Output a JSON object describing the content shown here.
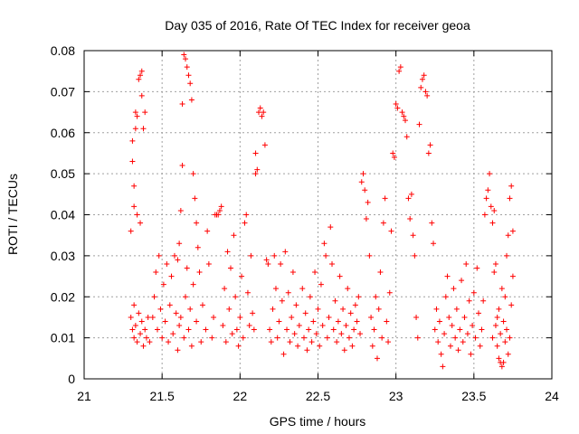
{
  "chart_data": {
    "type": "scatter",
    "title": "Day 035 of 2016, Rate Of TEC Index for receiver geoa",
    "xlabel": "GPS time / hours",
    "ylabel": "ROTI / TECUs",
    "xlim": [
      21,
      24
    ],
    "ylim": [
      0,
      0.08
    ],
    "x_ticks": [
      21,
      21.5,
      22,
      22.5,
      23,
      23.5,
      24
    ],
    "x_tick_labels": [
      "21",
      "21.5",
      "22",
      "22.5",
      "23",
      "23.5",
      "24"
    ],
    "y_ticks": [
      0,
      0.01,
      0.02,
      0.03,
      0.04,
      0.05,
      0.06,
      0.07,
      0.08
    ],
    "y_tick_labels": [
      "0",
      "0.01",
      "0.02",
      "0.03",
      "0.04",
      "0.05",
      "0.06",
      "0.07",
      "0.08"
    ],
    "grid": true,
    "marker": "+",
    "color": "#ff0000",
    "series": [
      {
        "name": "geoa",
        "points": [
          [
            21.3,
            0.015
          ],
          [
            21.31,
            0.012
          ],
          [
            21.32,
            0.01
          ],
          [
            21.32,
            0.018
          ],
          [
            21.33,
            0.013
          ],
          [
            21.34,
            0.009
          ],
          [
            21.35,
            0.016
          ],
          [
            21.36,
            0.011
          ],
          [
            21.37,
            0.014
          ],
          [
            21.38,
            0.008
          ],
          [
            21.39,
            0.012
          ],
          [
            21.4,
            0.01
          ],
          [
            21.41,
            0.015
          ],
          [
            21.42,
            0.009
          ],
          [
            21.31,
            0.058
          ],
          [
            21.31,
            0.053
          ],
          [
            21.32,
            0.047
          ],
          [
            21.32,
            0.042
          ],
          [
            21.33,
            0.065
          ],
          [
            21.34,
            0.064
          ],
          [
            21.33,
            0.061
          ],
          [
            21.35,
            0.073
          ],
          [
            21.36,
            0.074
          ],
          [
            21.37,
            0.075
          ],
          [
            21.37,
            0.069
          ],
          [
            21.38,
            0.061
          ],
          [
            21.39,
            0.065
          ],
          [
            21.34,
            0.04
          ],
          [
            21.36,
            0.038
          ],
          [
            21.3,
            0.036
          ],
          [
            21.44,
            0.015
          ],
          [
            21.45,
            0.02
          ],
          [
            21.46,
            0.026
          ],
          [
            21.47,
            0.012
          ],
          [
            21.48,
            0.03
          ],
          [
            21.49,
            0.017
          ],
          [
            21.5,
            0.01
          ],
          [
            21.51,
            0.023
          ],
          [
            21.52,
            0.014
          ],
          [
            21.53,
            0.028
          ],
          [
            21.54,
            0.009
          ],
          [
            21.55,
            0.018
          ],
          [
            21.56,
            0.025
          ],
          [
            21.57,
            0.011
          ],
          [
            21.58,
            0.03
          ],
          [
            21.59,
            0.016
          ],
          [
            21.6,
            0.007
          ],
          [
            21.61,
            0.013
          ],
          [
            21.62,
            0.041
          ],
          [
            21.63,
            0.052
          ],
          [
            21.63,
            0.067
          ],
          [
            21.64,
            0.079
          ],
          [
            21.65,
            0.078
          ],
          [
            21.66,
            0.076
          ],
          [
            21.67,
            0.074
          ],
          [
            21.68,
            0.072
          ],
          [
            21.69,
            0.068
          ],
          [
            21.7,
            0.05
          ],
          [
            21.71,
            0.044
          ],
          [
            21.72,
            0.038
          ],
          [
            21.6,
            0.029
          ],
          [
            21.61,
            0.033
          ],
          [
            21.62,
            0.015
          ],
          [
            21.64,
            0.01
          ],
          [
            21.65,
            0.02
          ],
          [
            21.66,
            0.027
          ],
          [
            21.67,
            0.012
          ],
          [
            21.68,
            0.017
          ],
          [
            21.69,
            0.008
          ],
          [
            21.7,
            0.023
          ],
          [
            21.72,
            0.014
          ],
          [
            21.73,
            0.032
          ],
          [
            21.74,
            0.026
          ],
          [
            21.75,
            0.009
          ],
          [
            21.76,
            0.018
          ],
          [
            21.78,
            0.012
          ],
          [
            21.79,
            0.036
          ],
          [
            21.8,
            0.028
          ],
          [
            21.82,
            0.01
          ],
          [
            21.83,
            0.015
          ],
          [
            21.84,
            0.04
          ],
          [
            21.85,
            0.04
          ],
          [
            21.86,
            0.04
          ],
          [
            21.87,
            0.041
          ],
          [
            21.88,
            0.042
          ],
          [
            21.89,
            0.013
          ],
          [
            21.9,
            0.022
          ],
          [
            21.91,
            0.009
          ],
          [
            21.92,
            0.031
          ],
          [
            21.93,
            0.017
          ],
          [
            21.94,
            0.027
          ],
          [
            21.95,
            0.011
          ],
          [
            21.96,
            0.035
          ],
          [
            21.97,
            0.02
          ],
          [
            21.98,
            0.012
          ],
          [
            21.99,
            0.008
          ],
          [
            22.0,
            0.015
          ],
          [
            22.01,
            0.025
          ],
          [
            22.02,
            0.01
          ],
          [
            22.03,
            0.038
          ],
          [
            22.04,
            0.04
          ],
          [
            22.05,
            0.021
          ],
          [
            22.06,
            0.013
          ],
          [
            22.07,
            0.03
          ],
          [
            22.08,
            0.016
          ],
          [
            22.09,
            0.012
          ],
          [
            22.1,
            0.05
          ],
          [
            22.1,
            0.055
          ],
          [
            22.11,
            0.051
          ],
          [
            22.12,
            0.065
          ],
          [
            22.13,
            0.066
          ],
          [
            22.14,
            0.064
          ],
          [
            22.15,
            0.065
          ],
          [
            22.16,
            0.057
          ],
          [
            22.17,
            0.029
          ],
          [
            22.18,
            0.028
          ],
          [
            22.19,
            0.012
          ],
          [
            22.2,
            0.009
          ],
          [
            22.21,
            0.017
          ],
          [
            22.22,
            0.03
          ],
          [
            22.23,
            0.022
          ],
          [
            22.24,
            0.01
          ],
          [
            22.25,
            0.014
          ],
          [
            22.26,
            0.028
          ],
          [
            22.27,
            0.019
          ],
          [
            22.28,
            0.006
          ],
          [
            22.29,
            0.031
          ],
          [
            22.3,
            0.012
          ],
          [
            22.31,
            0.021
          ],
          [
            22.32,
            0.009
          ],
          [
            22.33,
            0.015
          ],
          [
            22.34,
            0.026
          ],
          [
            22.35,
            0.011
          ],
          [
            22.36,
            0.018
          ],
          [
            22.37,
            0.008
          ],
          [
            22.38,
            0.013
          ],
          [
            22.4,
            0.022
          ],
          [
            22.41,
            0.01
          ],
          [
            22.42,
            0.016
          ],
          [
            22.43,
            0.007
          ],
          [
            22.44,
            0.012
          ],
          [
            22.45,
            0.02
          ],
          [
            22.46,
            0.009
          ],
          [
            22.47,
            0.014
          ],
          [
            22.48,
            0.026
          ],
          [
            22.49,
            0.011
          ],
          [
            22.5,
            0.017
          ],
          [
            22.51,
            0.008
          ],
          [
            22.52,
            0.023
          ],
          [
            22.53,
            0.013
          ],
          [
            22.54,
            0.033
          ],
          [
            22.55,
            0.03
          ],
          [
            22.56,
            0.01
          ],
          [
            22.57,
            0.015
          ],
          [
            22.58,
            0.037
          ],
          [
            22.59,
            0.028
          ],
          [
            22.6,
            0.012
          ],
          [
            22.61,
            0.019
          ],
          [
            22.62,
            0.009
          ],
          [
            22.63,
            0.014
          ],
          [
            22.64,
            0.025
          ],
          [
            22.65,
            0.011
          ],
          [
            22.66,
            0.017
          ],
          [
            22.67,
            0.007
          ],
          [
            22.68,
            0.013
          ],
          [
            22.69,
            0.022
          ],
          [
            22.7,
            0.01
          ],
          [
            22.71,
            0.016
          ],
          [
            22.72,
            0.008
          ],
          [
            22.73,
            0.012
          ],
          [
            22.74,
            0.018
          ],
          [
            22.75,
            0.014
          ],
          [
            22.76,
            0.02
          ],
          [
            22.77,
            0.011
          ],
          [
            22.78,
            0.048
          ],
          [
            22.79,
            0.05
          ],
          [
            22.8,
            0.046
          ],
          [
            22.81,
            0.039
          ],
          [
            22.82,
            0.043
          ],
          [
            22.83,
            0.03
          ],
          [
            22.84,
            0.015
          ],
          [
            22.85,
            0.008
          ],
          [
            22.86,
            0.012
          ],
          [
            22.87,
            0.02
          ],
          [
            22.88,
            0.005
          ],
          [
            22.89,
            0.017
          ],
          [
            22.9,
            0.026
          ],
          [
            22.91,
            0.01
          ],
          [
            22.92,
            0.038
          ],
          [
            22.93,
            0.044
          ],
          [
            22.94,
            0.014
          ],
          [
            22.95,
            0.009
          ],
          [
            22.96,
            0.021
          ],
          [
            22.97,
            0.036
          ],
          [
            22.98,
            0.055
          ],
          [
            22.99,
            0.054
          ],
          [
            23.0,
            0.067
          ],
          [
            23.01,
            0.066
          ],
          [
            23.02,
            0.075
          ],
          [
            23.03,
            0.076
          ],
          [
            23.04,
            0.065
          ],
          [
            23.05,
            0.064
          ],
          [
            23.06,
            0.063
          ],
          [
            23.07,
            0.059
          ],
          [
            23.08,
            0.044
          ],
          [
            23.09,
            0.039
          ],
          [
            23.1,
            0.045
          ],
          [
            23.11,
            0.035
          ],
          [
            23.12,
            0.03
          ],
          [
            23.13,
            0.015
          ],
          [
            23.14,
            0.01
          ],
          [
            23.15,
            0.062
          ],
          [
            23.16,
            0.071
          ],
          [
            23.17,
            0.073
          ],
          [
            23.18,
            0.074
          ],
          [
            23.19,
            0.07
          ],
          [
            23.2,
            0.069
          ],
          [
            23.21,
            0.055
          ],
          [
            23.22,
            0.057
          ],
          [
            23.23,
            0.038
          ],
          [
            23.24,
            0.033
          ],
          [
            23.25,
            0.012
          ],
          [
            23.26,
            0.017
          ],
          [
            23.27,
            0.009
          ],
          [
            23.28,
            0.014
          ],
          [
            23.29,
            0.006
          ],
          [
            23.3,
            0.003
          ],
          [
            23.31,
            0.011
          ],
          [
            23.32,
            0.02
          ],
          [
            23.33,
            0.025
          ],
          [
            23.34,
            0.015
          ],
          [
            23.35,
            0.008
          ],
          [
            23.36,
            0.013
          ],
          [
            23.37,
            0.022
          ],
          [
            23.38,
            0.01
          ],
          [
            23.39,
            0.017
          ],
          [
            23.4,
            0.007
          ],
          [
            23.41,
            0.012
          ],
          [
            23.42,
            0.024
          ],
          [
            23.43,
            0.009
          ],
          [
            23.44,
            0.015
          ],
          [
            23.45,
            0.028
          ],
          [
            23.46,
            0.011
          ],
          [
            23.47,
            0.019
          ],
          [
            23.48,
            0.006
          ],
          [
            23.49,
            0.013
          ],
          [
            23.5,
            0.021
          ],
          [
            23.51,
            0.01
          ],
          [
            23.52,
            0.027
          ],
          [
            23.53,
            0.016
          ],
          [
            23.54,
            0.008
          ],
          [
            23.55,
            0.012
          ],
          [
            23.56,
            0.019
          ],
          [
            23.57,
            0.04
          ],
          [
            23.58,
            0.044
          ],
          [
            23.59,
            0.046
          ],
          [
            23.6,
            0.05
          ],
          [
            23.61,
            0.042
          ],
          [
            23.62,
            0.038
          ],
          [
            23.63,
            0.041
          ],
          [
            23.64,
            0.028
          ],
          [
            23.65,
            0.015
          ],
          [
            23.66,
            0.005
          ],
          [
            23.67,
            0.004
          ],
          [
            23.68,
            0.003
          ],
          [
            23.69,
            0.004
          ],
          [
            23.7,
            0.02
          ],
          [
            23.71,
            0.03
          ],
          [
            23.72,
            0.035
          ],
          [
            23.73,
            0.044
          ],
          [
            23.74,
            0.047
          ],
          [
            23.75,
            0.036
          ],
          [
            23.75,
            0.025
          ],
          [
            23.74,
            0.018
          ],
          [
            23.73,
            0.01
          ],
          [
            23.72,
            0.006
          ],
          [
            23.71,
            0.012
          ],
          [
            23.7,
            0.009
          ],
          [
            23.69,
            0.014
          ],
          [
            23.68,
            0.022
          ],
          [
            23.67,
            0.011
          ],
          [
            23.66,
            0.017
          ],
          [
            23.65,
            0.008
          ],
          [
            23.64,
            0.013
          ],
          [
            23.63,
            0.026
          ],
          [
            23.62,
            0.01
          ]
        ]
      }
    ]
  }
}
